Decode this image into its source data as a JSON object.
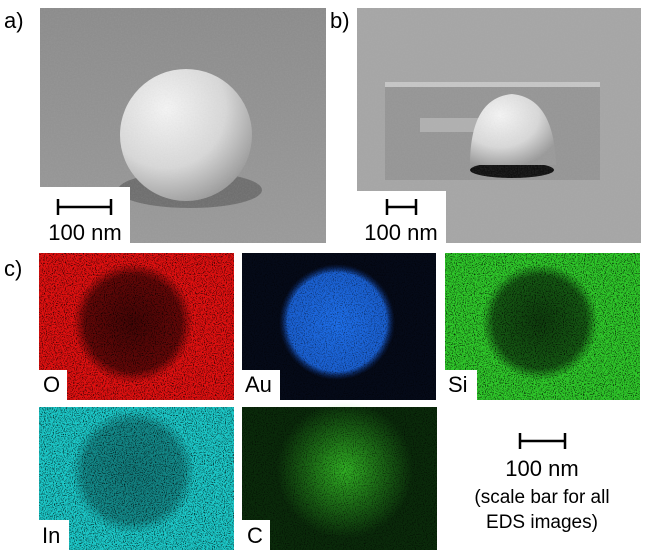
{
  "panel_a": {
    "label": "a)",
    "scale_label": "100 nm"
  },
  "panel_b": {
    "label": "b)",
    "scale_label": "100 nm"
  },
  "panel_c": {
    "label": "c)",
    "maps": [
      {
        "element": "O"
      },
      {
        "element": "Au"
      },
      {
        "element": "Si"
      },
      {
        "element": "In"
      },
      {
        "element": "C"
      }
    ],
    "scale_label": "100 nm",
    "note": [
      "(scale bar for all",
      "EDS images)"
    ]
  }
}
